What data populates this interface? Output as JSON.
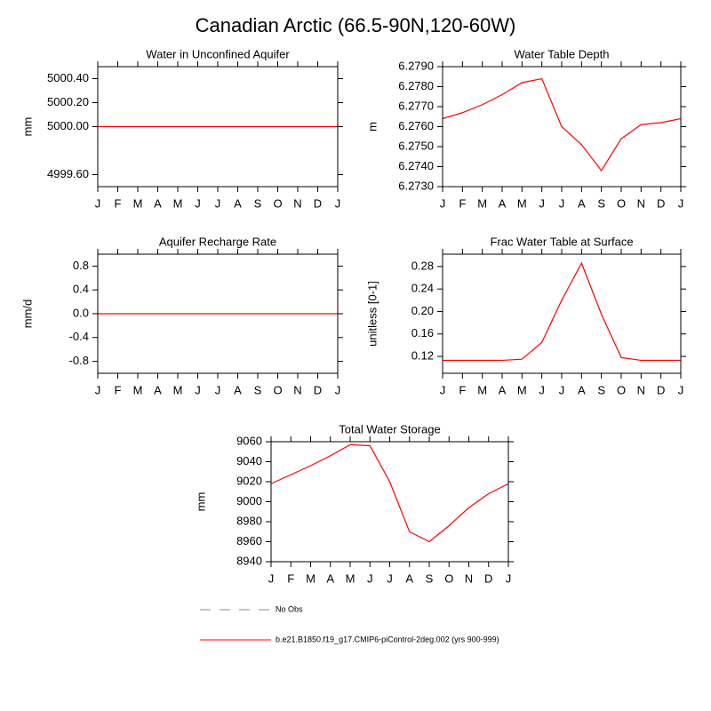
{
  "title": "Canadian Arctic (66.5-90N,120-60W)",
  "chart_data": [
    {
      "type": "line",
      "title": "Water in Unconfined Aquifer",
      "y_label": "mm",
      "categories": [
        "J",
        "F",
        "M",
        "A",
        "M",
        "J",
        "J",
        "A",
        "S",
        "O",
        "N",
        "D",
        "J"
      ],
      "series": [
        {
          "color": "#ff0000",
          "values": [
            5000,
            5000,
            5000,
            5000,
            5000,
            5000,
            5000,
            5000,
            5000,
            5000,
            5000,
            5000,
            5000
          ]
        }
      ],
      "ylim": [
        4999.5,
        5000.5
      ],
      "yticks": [
        {
          "value": 4999.6,
          "label": "4999.60"
        },
        {
          "value": 5000,
          "label": "5000.00"
        },
        {
          "value": 5000.2,
          "label": "5000.20"
        },
        {
          "value": 5000.4,
          "label": "5000.40"
        }
      ]
    },
    {
      "type": "line",
      "title": "Water Table Depth",
      "y_label": "m",
      "categories": [
        "J",
        "F",
        "M",
        "A",
        "M",
        "J",
        "J",
        "A",
        "S",
        "O",
        "N",
        "D",
        "J"
      ],
      "series": [
        {
          "color": "#ff0000",
          "values": [
            6.2764,
            6.2767,
            6.2771,
            6.2776,
            6.2782,
            6.2784,
            6.276,
            6.2751,
            6.2738,
            6.2754,
            6.2761,
            6.2762,
            6.2764
          ]
        }
      ],
      "ylim": [
        6.273,
        6.279
      ],
      "yticks": [
        {
          "value": 6.273,
          "label": "6.2730"
        },
        {
          "value": 6.274,
          "label": "6.2740"
        },
        {
          "value": 6.275,
          "label": "6.2750"
        },
        {
          "value": 6.276,
          "label": "6.2760"
        },
        {
          "value": 6.277,
          "label": "6.2770"
        },
        {
          "value": 6.278,
          "label": "6.2780"
        },
        {
          "value": 6.279,
          "label": "6.2790"
        }
      ]
    },
    {
      "type": "line",
      "title": "Aquifer Recharge Rate",
      "y_label": "mm/d",
      "categories": [
        "J",
        "F",
        "M",
        "A",
        "M",
        "J",
        "J",
        "A",
        "S",
        "O",
        "N",
        "D",
        "J"
      ],
      "series": [
        {
          "color": "#ff0000",
          "values": [
            0,
            0,
            0,
            0,
            0,
            0,
            0,
            0,
            0,
            0,
            0,
            0,
            0
          ]
        }
      ],
      "ylim": [
        -1,
        1
      ],
      "yticks": [
        -0.8,
        -0.4,
        {
          "value": 0,
          "label": "0.0"
        },
        0.4,
        0.8
      ]
    },
    {
      "type": "line",
      "title": "Frac Water Table at Surface",
      "y_label": "unitless [0-1]",
      "categories": [
        "J",
        "F",
        "M",
        "A",
        "M",
        "J",
        "J",
        "A",
        "S",
        "O",
        "N",
        "D",
        "J"
      ],
      "series": [
        {
          "color": "#ff0000",
          "values": [
            0.113,
            0.113,
            0.113,
            0.113,
            0.115,
            0.145,
            0.22,
            0.286,
            0.195,
            0.118,
            0.113,
            0.113,
            0.113
          ]
        }
      ],
      "ylim": [
        0.09,
        0.302
      ],
      "yticks": [
        0.12,
        0.16,
        {
          "value": 0.2,
          "label": "0.20"
        },
        0.24,
        0.28
      ]
    },
    {
      "type": "line",
      "title": "Total Water Storage",
      "y_label": "mm",
      "categories": [
        "J",
        "F",
        "M",
        "A",
        "M",
        "J",
        "J",
        "A",
        "S",
        "O",
        "N",
        "D",
        "J"
      ],
      "series": [
        {
          "color": "#ff0000",
          "values": [
            9018,
            9027,
            9036,
            9046,
            9057,
            9056,
            9020,
            8970,
            8960,
            8976,
            8994,
            9008,
            9018
          ]
        }
      ],
      "ylim": [
        8940,
        9060
      ],
      "yticks": [
        8940,
        8960,
        8980,
        9000,
        9020,
        9040,
        9060
      ]
    }
  ],
  "legend": [
    {
      "name": "No Obs",
      "color": "#888888",
      "dashed": true
    },
    {
      "name": "b.e21.B1850.f19_g17.CMIP6-piControl-2deg.002 (yrs 900-999)",
      "color": "#ff0000",
      "dashed": false
    }
  ]
}
